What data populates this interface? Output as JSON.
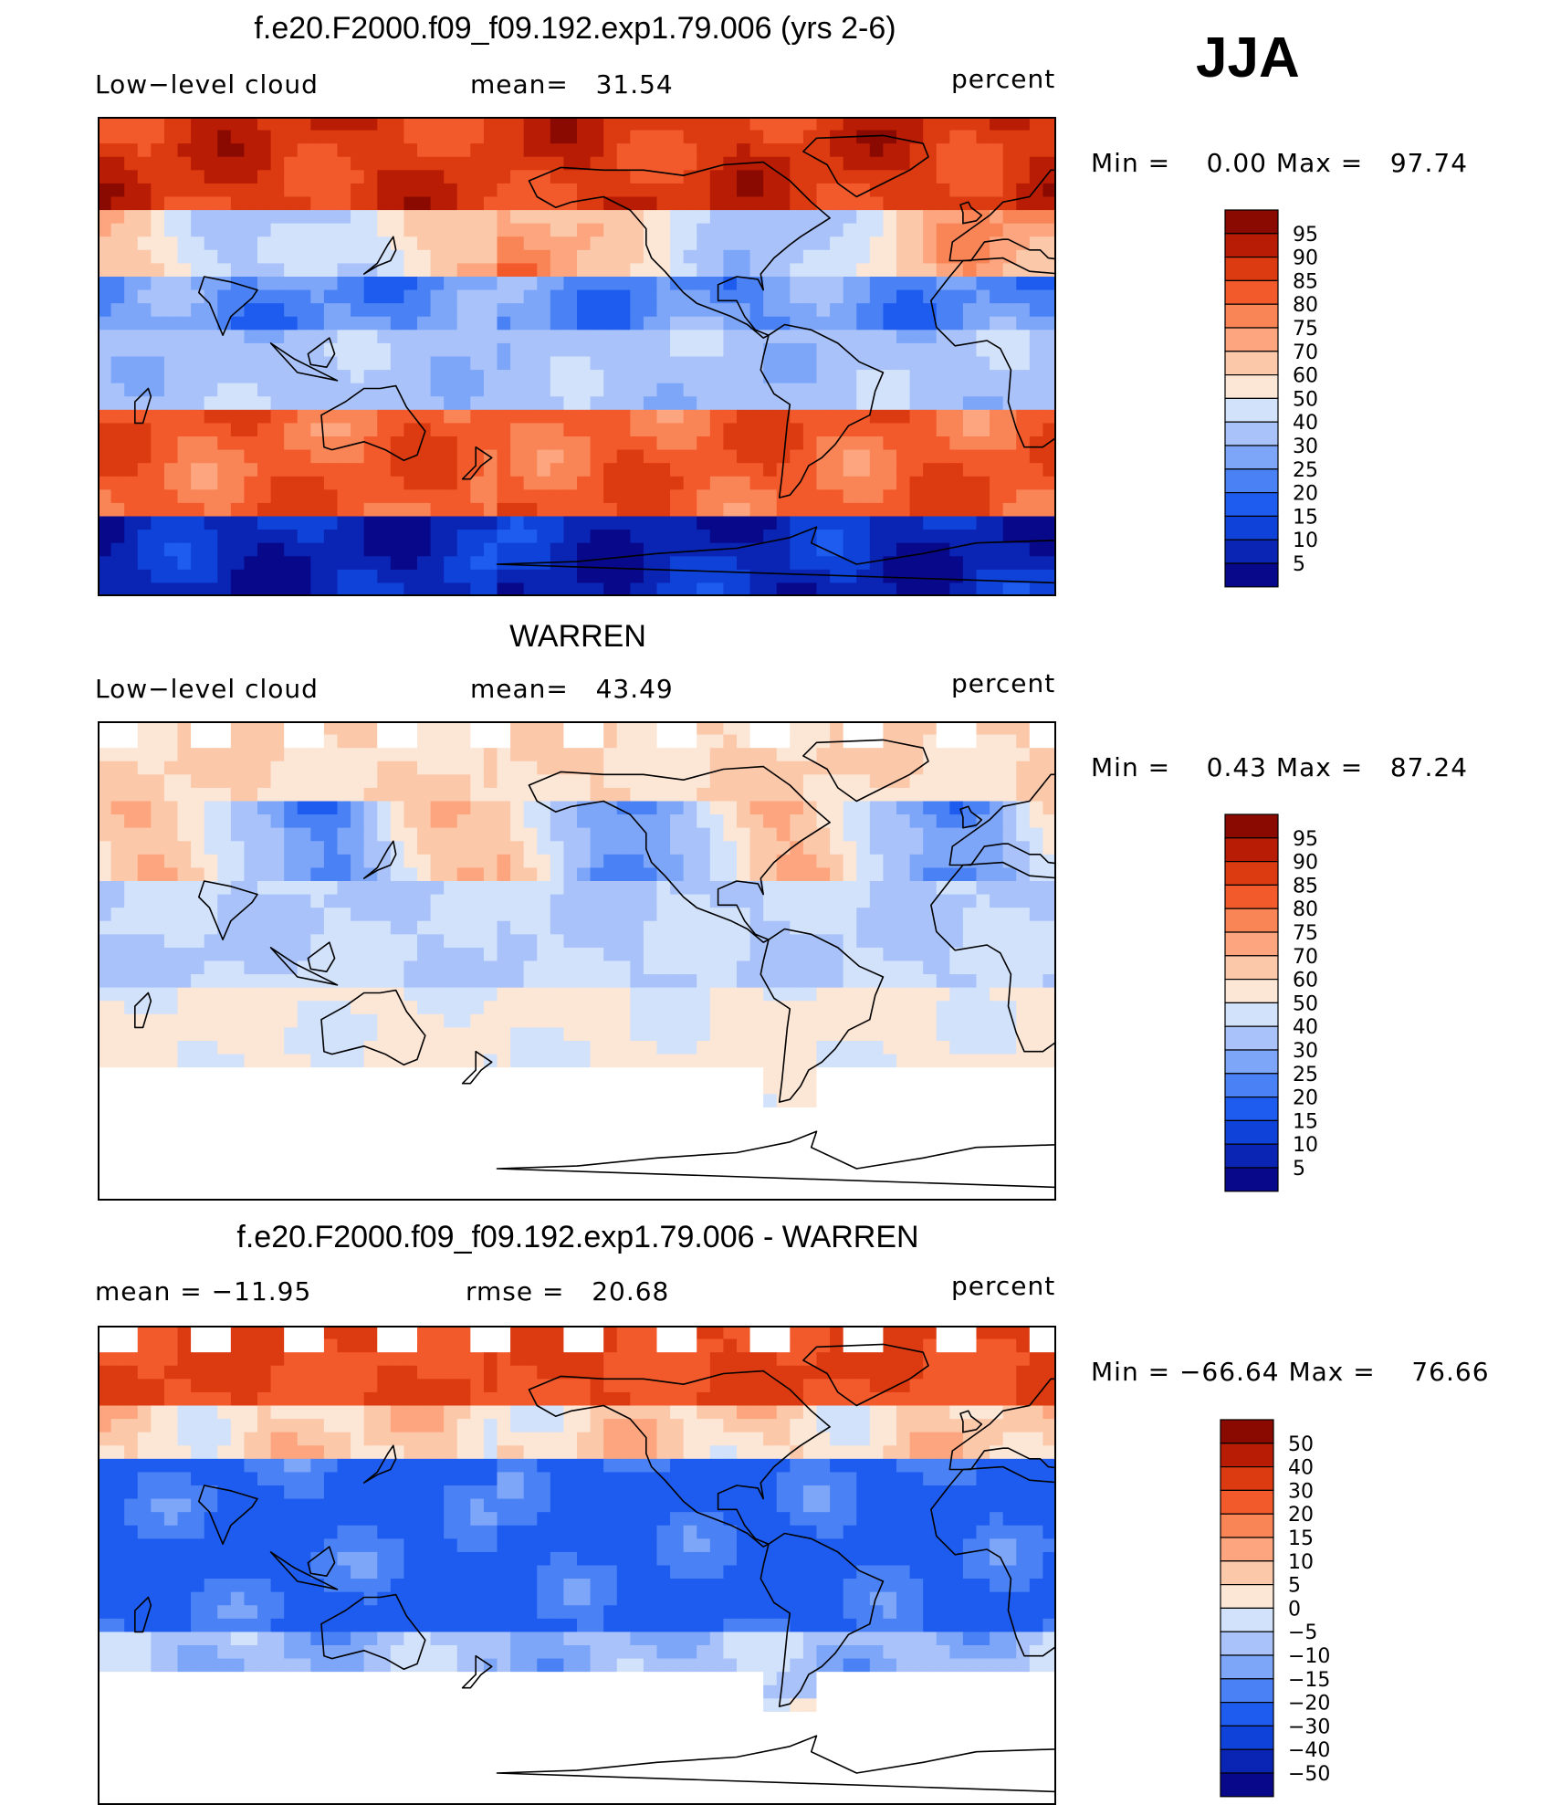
{
  "season": "JJA",
  "colors": {
    "ramp_16": [
      "#08088a",
      "#0a24b4",
      "#0f42d8",
      "#1e5cf0",
      "#4a82f6",
      "#7ea6f8",
      "#a9c3fa",
      "#d2e2fb",
      "#fce6d6",
      "#fcc8aa",
      "#fca57e",
      "#f98456",
      "#f25a2c",
      "#dc3a10",
      "#b81c04",
      "#8a0a02"
    ],
    "land_outline": "#000000",
    "missing": "#ffffff"
  },
  "chart_data": [
    {
      "type": "heatmap",
      "title": "f.e20.F2000.f09_f09.192.exp1.79.006 (yrs 2-6)",
      "left_label": "Low−level cloud",
      "center_label": "mean=",
      "center_value": "31.54",
      "units": "percent",
      "min_label": "Min  =",
      "min_value": "0.00",
      "max_label": "Max  =",
      "max_value": "97.74",
      "colorbar": [
        "95",
        "90",
        "85",
        "80",
        "75",
        "70",
        "60",
        "50",
        "40",
        "30",
        "25",
        "20",
        "15",
        "10",
        "5"
      ]
    },
    {
      "type": "heatmap",
      "title": "WARREN",
      "left_label": "Low−level cloud",
      "center_label": "mean=",
      "center_value": "43.49",
      "units": "percent",
      "min_label": "Min  =",
      "min_value": "0.43",
      "max_label": "Max  =",
      "max_value": "87.24",
      "colorbar": [
        "95",
        "90",
        "85",
        "80",
        "75",
        "70",
        "60",
        "50",
        "40",
        "30",
        "25",
        "20",
        "15",
        "10",
        "5"
      ]
    },
    {
      "type": "heatmap",
      "title": "f.e20.F2000.f09_f09.192.exp1.79.006 - WARREN",
      "left_label": "mean  =  −11.95",
      "center_label": "rmse  =",
      "center_value": "20.68",
      "units": "percent",
      "min_label": "Min  =",
      "min_value": "−66.64",
      "max_label": "Max  =",
      "max_value": "76.66",
      "colorbar": [
        "50",
        "40",
        "30",
        "20",
        "15",
        "10",
        "5",
        "0",
        "−5",
        "−10",
        "−15",
        "−20",
        "−30",
        "−40",
        "−50"
      ]
    }
  ]
}
